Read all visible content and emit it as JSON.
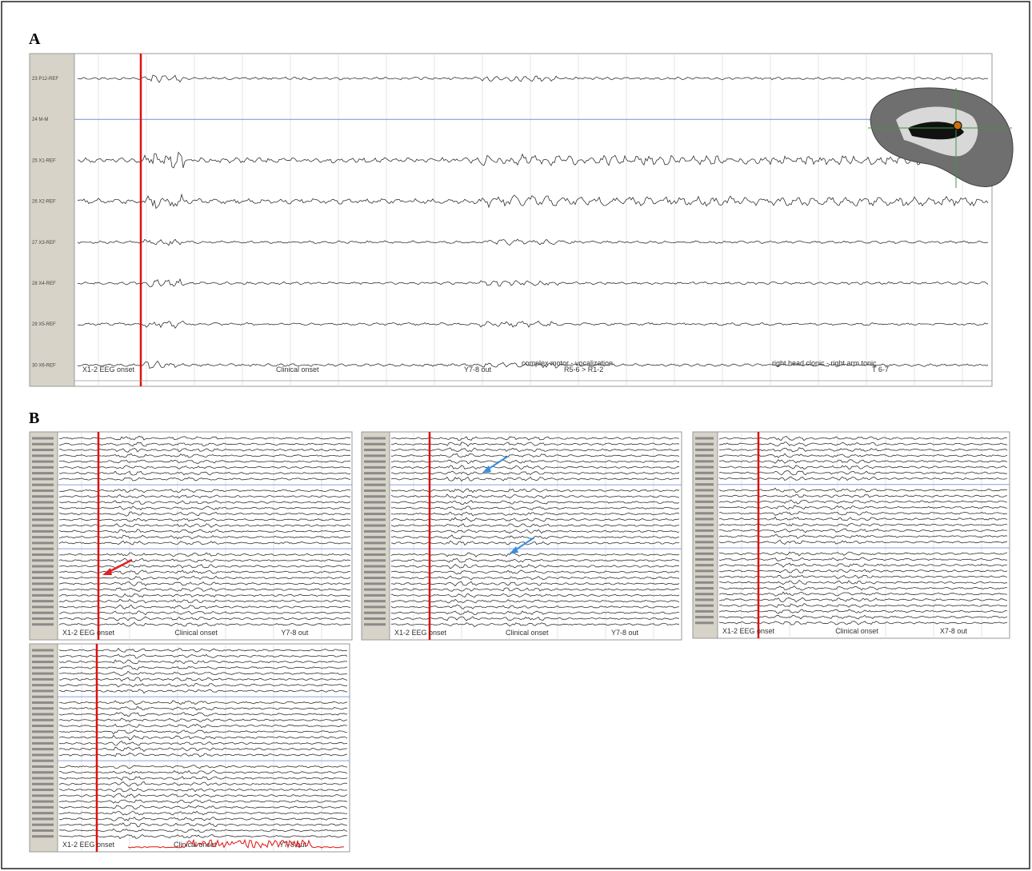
{
  "panel_a": {
    "label": "A",
    "channels": [
      "23 P12-REF",
      "24 M-M",
      "25 X1-REF",
      "26 X2-REF",
      "27 X3-REF",
      "28 X4-REF",
      "29 X5-REF",
      "30 X6-REF"
    ],
    "annotations": [
      "X1-2 EEG onset",
      "Clinical onset",
      "Y7-8 out",
      "complex motor - vocalization",
      "R5-6 > R1-2",
      "right head clonic - right arm tonic",
      "T 6-7"
    ]
  },
  "panel_b": {
    "label": "B",
    "subpanels": [
      {
        "annotations": [
          "X1-2 EEG onset",
          "Clinical onset",
          "Y7-8 out"
        ]
      },
      {
        "annotations": [
          "X1-2 EEG onset",
          "Clinical onset",
          "Y7-8 out"
        ]
      },
      {
        "annotations": [
          "X1-2 EEG onset",
          "Clinical onset",
          "X7-8 out"
        ]
      },
      {
        "annotations": [
          "X1-2 EEG onset",
          "Clinical onset",
          "Y7-8 out"
        ]
      }
    ]
  }
}
